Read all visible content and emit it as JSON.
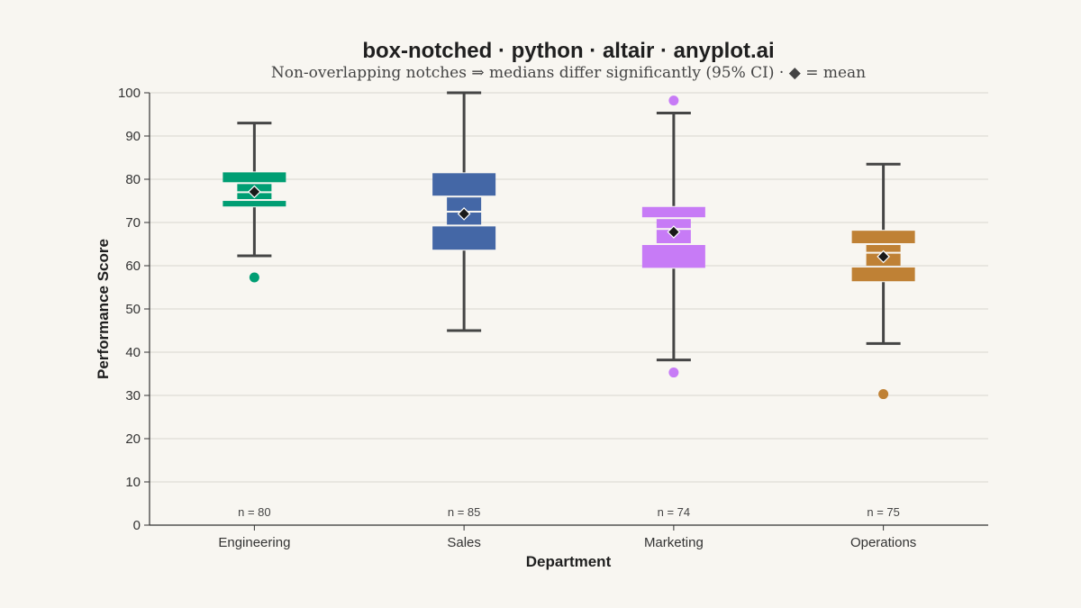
{
  "chart_data": {
    "type": "box-notched",
    "title": "box-notched · python · altair · anyplot.ai",
    "subtitle": "Non-overlapping notches ⇒ medians differ significantly (95% CI) · ◆ = mean",
    "xlabel": "Department",
    "ylabel": "Performance Score",
    "ylim": [
      0,
      100
    ],
    "yticks": [
      0,
      10,
      20,
      30,
      40,
      50,
      60,
      70,
      80,
      90,
      100
    ],
    "grid": true,
    "colors": {
      "background": "#f8f6f1",
      "whisker": "#454545",
      "mean_marker": "#1a1a1a",
      "grid": "#d9d6d0"
    },
    "categories": [
      "Engineering",
      "Sales",
      "Marketing",
      "Operations"
    ],
    "series": [
      {
        "category": "Engineering",
        "color": "#009e73",
        "n_label": "n = 80",
        "whisker_low": 62.3,
        "q1": 73.5,
        "notch_low": 75.2,
        "median": 77.0,
        "notch_high": 79.1,
        "q3": 81.8,
        "whisker_high": 93.0,
        "mean": 77.1,
        "outliers": [
          57.3
        ]
      },
      {
        "category": "Sales",
        "color": "#4467a6",
        "n_label": "n = 85",
        "whisker_low": 45.0,
        "q1": 63.5,
        "notch_low": 69.3,
        "median": 72.5,
        "notch_high": 76.0,
        "q3": 81.6,
        "whisker_high": 100.0,
        "mean": 72.0,
        "outliers": []
      },
      {
        "category": "Marketing",
        "color": "#c77bf6",
        "n_label": "n = 74",
        "whisker_low": 38.2,
        "q1": 59.3,
        "notch_low": 65.0,
        "median": 68.5,
        "notch_high": 71.0,
        "q3": 73.8,
        "whisker_high": 95.3,
        "mean": 67.8,
        "outliers": [
          98.2,
          35.3
        ]
      },
      {
        "category": "Operations",
        "color": "#bf8135",
        "n_label": "n = 75",
        "whisker_low": 42.0,
        "q1": 56.2,
        "notch_low": 59.8,
        "median": 63.0,
        "notch_high": 65.0,
        "q3": 68.3,
        "whisker_high": 83.5,
        "mean": 62.1,
        "outliers": [
          30.3
        ]
      }
    ]
  }
}
